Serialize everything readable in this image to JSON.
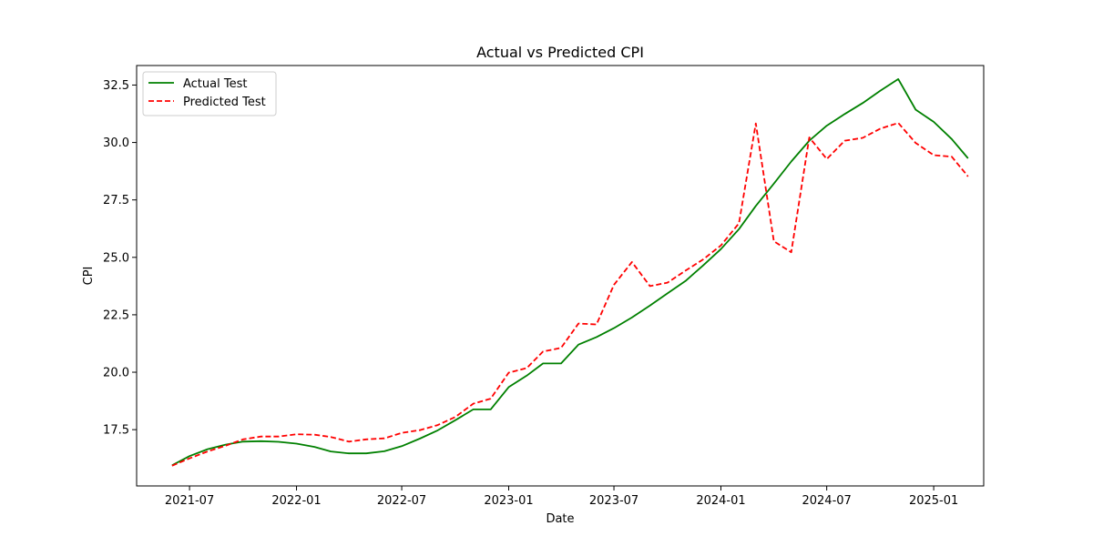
{
  "chart_data": {
    "type": "line",
    "title": "Actual vs Predicted CPI",
    "xlabel": "Date",
    "ylabel": "CPI",
    "xlim": [
      "2021-04-01",
      "2025-03-28"
    ],
    "ylim": [
      15.05,
      33.35
    ],
    "x_ticks": [
      "2021-07",
      "2022-01",
      "2022-07",
      "2023-01",
      "2023-07",
      "2024-01",
      "2024-07",
      "2025-01"
    ],
    "y_ticks": [
      17.5,
      20.0,
      22.5,
      25.0,
      27.5,
      30.0,
      32.5
    ],
    "y_tick_labels": [
      "17.5",
      "20.0",
      "22.5",
      "25.0",
      "27.5",
      "30.0",
      "32.5"
    ],
    "grid": false,
    "legend_position": "top-left",
    "x": [
      "2021-06",
      "2021-07",
      "2021-08",
      "2021-09",
      "2021-10",
      "2021-11",
      "2021-12",
      "2022-01",
      "2022-02",
      "2022-03",
      "2022-04",
      "2022-05",
      "2022-06",
      "2022-07",
      "2022-08",
      "2022-09",
      "2022-10",
      "2022-11",
      "2022-12",
      "2023-01",
      "2023-02",
      "2023-03",
      "2023-04",
      "2023-05",
      "2023-06",
      "2023-07",
      "2023-08",
      "2023-09",
      "2023-10",
      "2023-11",
      "2023-12",
      "2024-01",
      "2024-02",
      "2024-03",
      "2024-04",
      "2024-05",
      "2024-06",
      "2024-07",
      "2024-08",
      "2024-09",
      "2024-10",
      "2024-11",
      "2024-12",
      "2025-01",
      "2025-02",
      "2025-03"
    ],
    "series": [
      {
        "name": "Actual Test",
        "color": "#008000",
        "style": "solid",
        "values": [
          15.95,
          16.35,
          16.65,
          16.85,
          16.98,
          17.0,
          16.97,
          16.89,
          16.75,
          16.55,
          16.47,
          16.47,
          16.56,
          16.78,
          17.11,
          17.47,
          17.91,
          18.38,
          18.38,
          19.35,
          19.85,
          20.38,
          20.38,
          21.2,
          21.53,
          21.92,
          22.38,
          22.9,
          23.43,
          23.97,
          24.64,
          25.36,
          26.23,
          27.24,
          28.21,
          29.17,
          30.08,
          30.73,
          31.24,
          31.72,
          32.25,
          32.76,
          31.43,
          30.9,
          30.15,
          29.31
        ]
      },
      {
        "name": "Predicted Test",
        "color": "#ff0000",
        "style": "dashed",
        "values": [
          15.93,
          16.25,
          16.55,
          16.8,
          17.08,
          17.2,
          17.2,
          17.3,
          17.28,
          17.18,
          16.98,
          17.08,
          17.12,
          17.36,
          17.48,
          17.7,
          18.05,
          18.63,
          18.85,
          19.98,
          20.18,
          20.9,
          21.06,
          22.12,
          22.08,
          23.8,
          24.8,
          23.75,
          23.9,
          24.42,
          24.9,
          25.52,
          26.48,
          30.83,
          25.7,
          25.22,
          30.22,
          29.28,
          30.08,
          30.2,
          30.6,
          30.85,
          29.98,
          29.45,
          29.38,
          28.52
        ]
      }
    ]
  }
}
